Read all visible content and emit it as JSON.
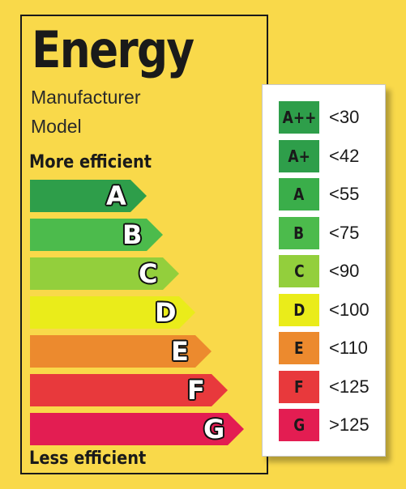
{
  "label": {
    "title": "Energy",
    "manufacturer": "Manufacturer",
    "model": "Model",
    "more_efficient": "More efficient",
    "less_efficient": "Less efficient",
    "bars": [
      {
        "letter": "A",
        "color": "#2e9e4a"
      },
      {
        "letter": "B",
        "color": "#4cbb4c"
      },
      {
        "letter": "C",
        "color": "#93cf3c"
      },
      {
        "letter": "D",
        "color": "#eaec1a"
      },
      {
        "letter": "E",
        "color": "#ec8a2e"
      },
      {
        "letter": "F",
        "color": "#e8393c"
      },
      {
        "letter": "G",
        "color": "#e31d52"
      }
    ]
  },
  "scale_table": {
    "rows": [
      {
        "class": "A++",
        "range": "<30",
        "color": "#2e9e4a"
      },
      {
        "class": "A+",
        "range": "<42",
        "color": "#2e9e4a"
      },
      {
        "class": "A",
        "range": "<55",
        "color": "#3aae4a"
      },
      {
        "class": "B",
        "range": "<75",
        "color": "#4cbb4c"
      },
      {
        "class": "C",
        "range": "<90",
        "color": "#93cf3c"
      },
      {
        "class": "D",
        "range": "<100",
        "color": "#eaec1a"
      },
      {
        "class": "E",
        "range": "<110",
        "color": "#ec8a2e"
      },
      {
        "class": "F",
        "range": "<125",
        "color": "#e8393c"
      },
      {
        "class": "G",
        "range": ">125",
        "color": "#e31d52"
      }
    ]
  }
}
